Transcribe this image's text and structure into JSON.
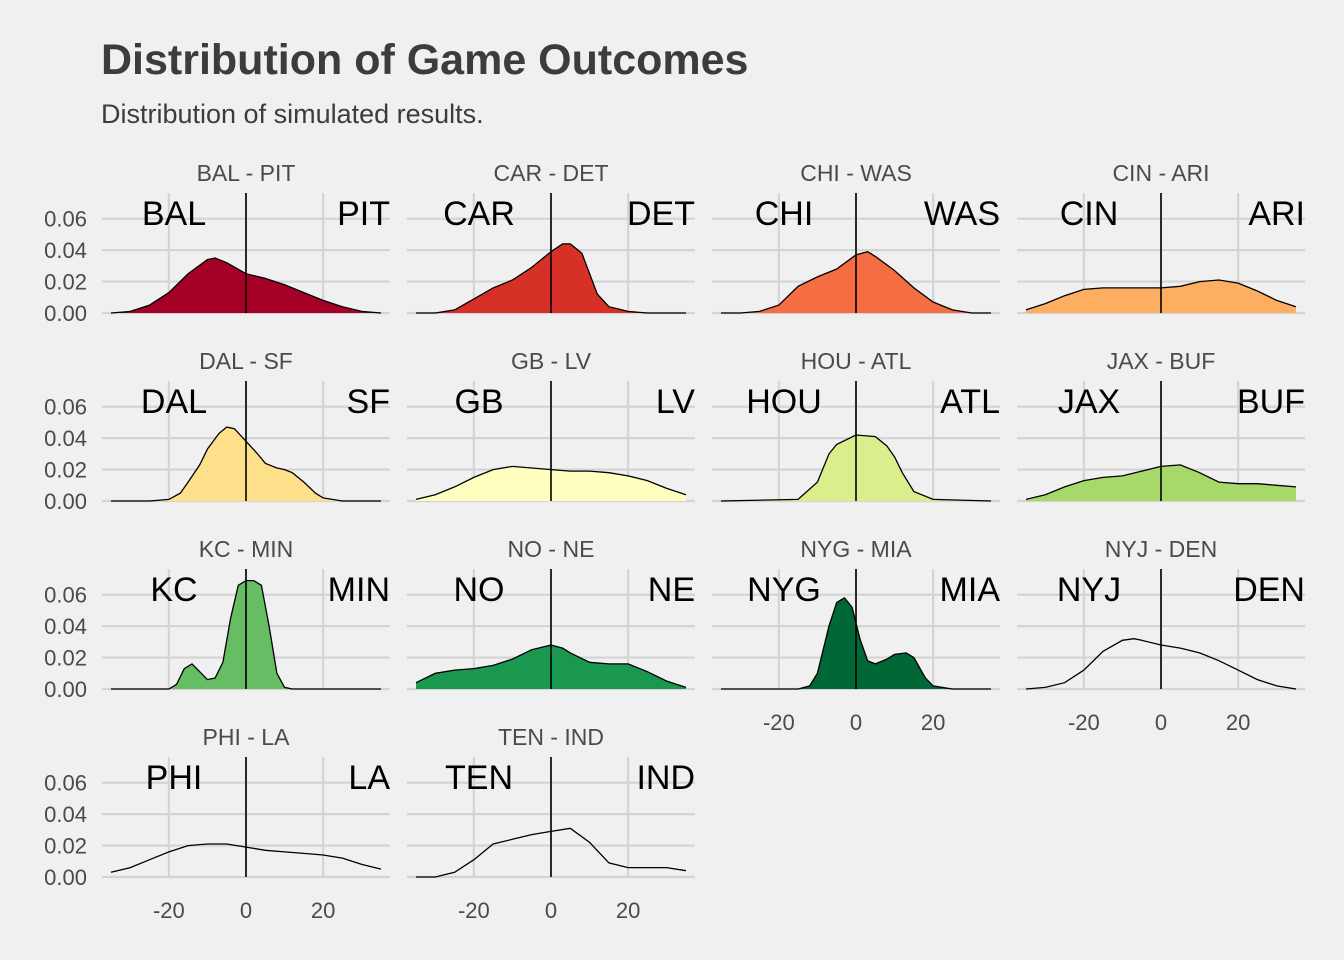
{
  "title": "Distribution of Game Outcomes",
  "subtitle": "Distribution of simulated results.",
  "chart_data": {
    "type": "area",
    "chart_kind": "faceted density plot",
    "xlim": [
      -35,
      35
    ],
    "ylim": [
      0,
      0.07
    ],
    "x_ticks": [
      -20,
      0,
      20
    ],
    "y_ticks": [
      0.0,
      0.02,
      0.04,
      0.06
    ],
    "x_tick_labels": [
      "-20",
      "0",
      "20"
    ],
    "y_tick_labels": [
      "0.00",
      "0.02",
      "0.04",
      "0.06"
    ],
    "grid": true,
    "legend": "none",
    "reference_line_x": 0,
    "panels": [
      {
        "label": "BAL - PIT",
        "left_team": "BAL",
        "right_team": "PIT",
        "color": "#a50026",
        "x": [
          -35,
          -30,
          -25,
          -20,
          -15,
          -10,
          -8,
          -5,
          0,
          5,
          10,
          15,
          20,
          25,
          30,
          35
        ],
        "y": [
          0.0,
          0.001,
          0.005,
          0.013,
          0.025,
          0.034,
          0.035,
          0.032,
          0.025,
          0.022,
          0.018,
          0.013,
          0.008,
          0.004,
          0.001,
          0.0
        ]
      },
      {
        "label": "CAR - DET",
        "left_team": "CAR",
        "right_team": "DET",
        "color": "#d73027",
        "x": [
          -35,
          -30,
          -25,
          -20,
          -15,
          -10,
          -5,
          0,
          3,
          5,
          8,
          10,
          12,
          15,
          20,
          25,
          30,
          35
        ],
        "y": [
          0.0,
          0.0,
          0.002,
          0.009,
          0.016,
          0.021,
          0.029,
          0.039,
          0.044,
          0.044,
          0.038,
          0.025,
          0.012,
          0.004,
          0.001,
          0.0,
          0.0,
          0.0
        ]
      },
      {
        "label": "CHI - WAS",
        "left_team": "CHI",
        "right_team": "WAS",
        "color": "#f46d43",
        "x": [
          -35,
          -30,
          -25,
          -20,
          -15,
          -10,
          -5,
          0,
          3,
          5,
          10,
          15,
          20,
          25,
          30,
          35
        ],
        "y": [
          0.0,
          0.0,
          0.001,
          0.005,
          0.017,
          0.023,
          0.028,
          0.037,
          0.039,
          0.036,
          0.027,
          0.016,
          0.007,
          0.002,
          0.0,
          0.0
        ]
      },
      {
        "label": "CIN - ARI",
        "left_team": "CIN",
        "right_team": "ARI",
        "color": "#fdae61",
        "x": [
          -35,
          -30,
          -25,
          -20,
          -15,
          -10,
          -5,
          0,
          5,
          10,
          15,
          20,
          25,
          30,
          35
        ],
        "y": [
          0.002,
          0.006,
          0.011,
          0.015,
          0.016,
          0.016,
          0.016,
          0.016,
          0.017,
          0.02,
          0.021,
          0.019,
          0.014,
          0.008,
          0.004
        ]
      },
      {
        "label": "DAL - SF",
        "left_team": "DAL",
        "right_team": "SF",
        "color": "#fee08b",
        "x": [
          -35,
          -25,
          -20,
          -17,
          -15,
          -12,
          -10,
          -7,
          -5,
          -3,
          0,
          3,
          5,
          8,
          10,
          12,
          15,
          18,
          20,
          25,
          35
        ],
        "y": [
          0.0,
          0.0,
          0.001,
          0.005,
          0.012,
          0.023,
          0.033,
          0.043,
          0.047,
          0.046,
          0.038,
          0.03,
          0.024,
          0.021,
          0.02,
          0.018,
          0.012,
          0.005,
          0.002,
          0.0,
          0.0
        ]
      },
      {
        "label": "GB - LV",
        "left_team": "GB",
        "right_team": "LV",
        "color": "#ffffbf",
        "x": [
          -35,
          -30,
          -25,
          -20,
          -15,
          -10,
          -5,
          0,
          5,
          10,
          15,
          20,
          25,
          30,
          35
        ],
        "y": [
          0.001,
          0.004,
          0.009,
          0.015,
          0.02,
          0.022,
          0.021,
          0.02,
          0.019,
          0.019,
          0.018,
          0.016,
          0.013,
          0.008,
          0.004
        ]
      },
      {
        "label": "HOU - ATL",
        "left_team": "HOU",
        "right_team": "ATL",
        "color": "#d9ef8b",
        "x": [
          -35,
          -15,
          -10,
          -7,
          -5,
          0,
          5,
          8,
          10,
          12,
          15,
          20,
          35
        ],
        "y": [
          0.0,
          0.001,
          0.012,
          0.03,
          0.036,
          0.042,
          0.041,
          0.035,
          0.028,
          0.018,
          0.006,
          0.001,
          0.0
        ]
      },
      {
        "label": "JAX - BUF",
        "left_team": "JAX",
        "right_team": "BUF",
        "color": "#a6d96a",
        "x": [
          -35,
          -30,
          -25,
          -20,
          -15,
          -10,
          -5,
          0,
          5,
          10,
          15,
          20,
          25,
          30,
          35
        ],
        "y": [
          0.001,
          0.004,
          0.009,
          0.013,
          0.015,
          0.016,
          0.019,
          0.022,
          0.023,
          0.018,
          0.012,
          0.011,
          0.011,
          0.01,
          0.009
        ]
      },
      {
        "label": "KC - MIN",
        "left_team": "KC",
        "right_team": "MIN",
        "color": "#66bd63",
        "x": [
          -35,
          -20,
          -18,
          -16,
          -14,
          -12,
          -10,
          -8,
          -6,
          -4,
          -2,
          0,
          2,
          4,
          6,
          8,
          10,
          12,
          35
        ],
        "y": [
          0.0,
          0.0,
          0.003,
          0.013,
          0.016,
          0.011,
          0.006,
          0.007,
          0.017,
          0.045,
          0.066,
          0.069,
          0.069,
          0.066,
          0.04,
          0.01,
          0.001,
          0.0,
          0.0
        ]
      },
      {
        "label": "NO - NE",
        "left_team": "NO",
        "right_team": "NE",
        "color": "#1a9850",
        "x": [
          -35,
          -30,
          -25,
          -20,
          -15,
          -10,
          -5,
          0,
          3,
          5,
          10,
          15,
          20,
          25,
          30,
          35
        ],
        "y": [
          0.004,
          0.01,
          0.012,
          0.013,
          0.015,
          0.019,
          0.025,
          0.028,
          0.026,
          0.023,
          0.017,
          0.016,
          0.016,
          0.011,
          0.005,
          0.001
        ]
      },
      {
        "label": "NYG - MIA",
        "left_team": "NYG",
        "right_team": "MIA",
        "color": "#006837",
        "x": [
          -35,
          -15,
          -12,
          -10,
          -7,
          -5,
          -3,
          -1,
          1,
          3,
          5,
          8,
          10,
          13,
          15,
          18,
          20,
          25,
          35
        ],
        "y": [
          0.0,
          0.0,
          0.002,
          0.01,
          0.04,
          0.055,
          0.058,
          0.052,
          0.032,
          0.018,
          0.016,
          0.019,
          0.022,
          0.023,
          0.02,
          0.007,
          0.002,
          0.0,
          0.0
        ]
      },
      {
        "label": "NYJ - DEN",
        "left_team": "NYJ",
        "right_team": "DEN",
        "color": null,
        "x": [
          -35,
          -30,
          -25,
          -20,
          -15,
          -10,
          -7,
          -5,
          0,
          5,
          10,
          15,
          20,
          25,
          30,
          35
        ],
        "y": [
          0.0,
          0.001,
          0.004,
          0.012,
          0.024,
          0.031,
          0.032,
          0.031,
          0.028,
          0.026,
          0.023,
          0.018,
          0.012,
          0.006,
          0.002,
          0.0
        ]
      },
      {
        "label": "PHI - LA",
        "left_team": "PHI",
        "right_team": "LA",
        "color": null,
        "x": [
          -35,
          -30,
          -25,
          -20,
          -15,
          -10,
          -5,
          0,
          5,
          10,
          15,
          20,
          25,
          30,
          35
        ],
        "y": [
          0.003,
          0.006,
          0.011,
          0.016,
          0.02,
          0.021,
          0.021,
          0.019,
          0.017,
          0.016,
          0.015,
          0.014,
          0.012,
          0.008,
          0.005
        ]
      },
      {
        "label": "TEN - IND",
        "left_team": "TEN",
        "right_team": "IND",
        "color": null,
        "x": [
          -35,
          -30,
          -25,
          -20,
          -15,
          -10,
          -5,
          0,
          5,
          10,
          15,
          20,
          25,
          30,
          35
        ],
        "y": [
          0.0,
          0.0,
          0.003,
          0.011,
          0.021,
          0.024,
          0.027,
          0.029,
          0.031,
          0.022,
          0.009,
          0.006,
          0.006,
          0.006,
          0.004
        ]
      }
    ]
  }
}
